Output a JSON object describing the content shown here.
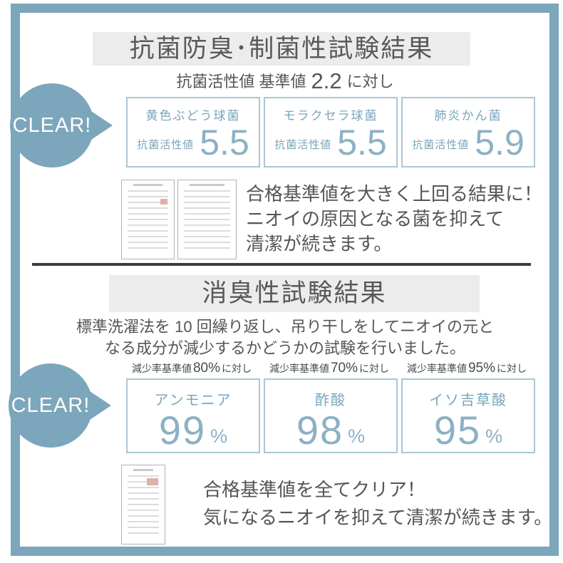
{
  "colors": {
    "frame_blue": "#7ca6bb",
    "card_border_blue": "#abc6d5",
    "value_blue": "#8cb1c5",
    "header_gray": "#ececec",
    "text_gray": "#595959",
    "divider_dark": "#3d3d3d"
  },
  "section1": {
    "title": "抗菌防臭･制菌性試験結果",
    "subtitle_pre": "抗菌活性値 基準値",
    "subtitle_value": "2.2",
    "subtitle_post": "に対し",
    "badge_label": "CLEAR!",
    "results": [
      {
        "name": "黄色ぶどう球菌",
        "metric": "抗菌活性値",
        "value": "5.5"
      },
      {
        "name": "モラクセラ球菌",
        "metric": "抗菌活性値",
        "value": "5.5"
      },
      {
        "name": "肺炎かん菌",
        "metric": "抗菌活性値",
        "value": "5.9"
      }
    ],
    "note_lines": [
      "合格基準値を大きく上回る結果に！",
      "ニオイの原因となる菌を抑えて",
      "清潔が続きます。"
    ]
  },
  "section2": {
    "title": "消臭性試験結果",
    "subtitle_lines": [
      "標準洗濯法を 10 回繰り返し、吊り干しをしてニオイの元と",
      "なる成分が減少するかどうかの試験を行いました。"
    ],
    "badge_label": "CLEAR!",
    "results": [
      {
        "criteria_pre": "減少率基準値",
        "criteria_value": "80%",
        "criteria_post": "に対し",
        "name": "アンモニア",
        "value": "99",
        "unit": "%"
      },
      {
        "criteria_pre": "減少率基準値",
        "criteria_value": "70%",
        "criteria_post": "に対し",
        "name": "酢酸",
        "value": "98",
        "unit": "%"
      },
      {
        "criteria_pre": "減少率基準値",
        "criteria_value": "95%",
        "criteria_post": "に対し",
        "name": "イソ吉草酸",
        "value": "95",
        "unit": "%"
      }
    ],
    "note_lines": [
      "合格基準値を全てクリア！",
      "気になるニオイを抑えて清潔が続きます。"
    ]
  }
}
